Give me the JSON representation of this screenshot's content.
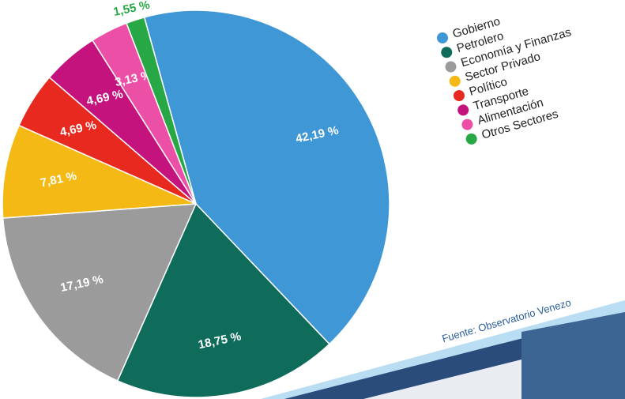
{
  "chart_data": {
    "type": "pie",
    "categories": [
      "Gobierno",
      "Petrolero",
      "Economía y Finanzas",
      "Sector Privado",
      "Político",
      "Transporte",
      "Alimentación",
      "Otros Sectores"
    ],
    "values": [
      42.19,
      18.75,
      17.19,
      7.81,
      4.69,
      4.69,
      3.13,
      1.55
    ],
    "value_labels": [
      "42,19 %",
      "18,75 %",
      "17,19 %",
      "7,81 %",
      "4,69 %",
      "4,69 %",
      "3,13 %",
      "1,55 %"
    ],
    "colors": [
      "#3f97d6",
      "#0f6b5a",
      "#9b9b9b",
      "#f5b916",
      "#e8291f",
      "#c4137c",
      "#ec4fa6",
      "#27a845"
    ],
    "source": "Fuente: Observatorio Venezo"
  }
}
